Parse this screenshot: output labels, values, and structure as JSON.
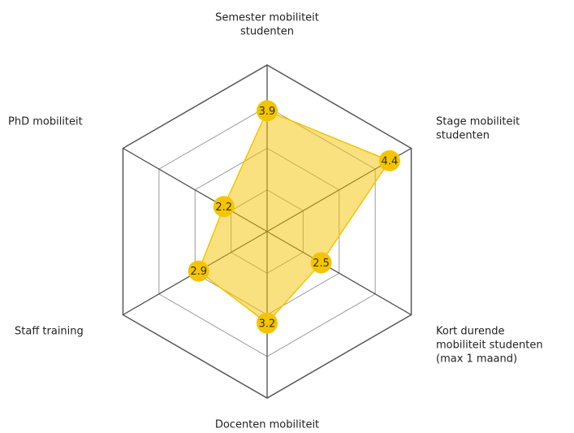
{
  "chart_data": {
    "type": "radar",
    "categories": [
      [
        "Semester mobiliteit",
        "studenten"
      ],
      [
        "Stage mobiliteit",
        "studenten"
      ],
      [
        "Kort durende",
        "mobiliteit studenten",
        "(max 1 maand)"
      ],
      [
        "Docenten mobiliteit"
      ],
      [
        "Staff training"
      ],
      [
        "PhD mobiliteit"
      ]
    ],
    "values": [
      3.9,
      4.4,
      2.5,
      3.2,
      2.9,
      2.2
    ],
    "color": "#f5c400",
    "rlim": [
      1,
      5
    ],
    "rticks": [
      2,
      3,
      4,
      5
    ],
    "grid": true
  }
}
